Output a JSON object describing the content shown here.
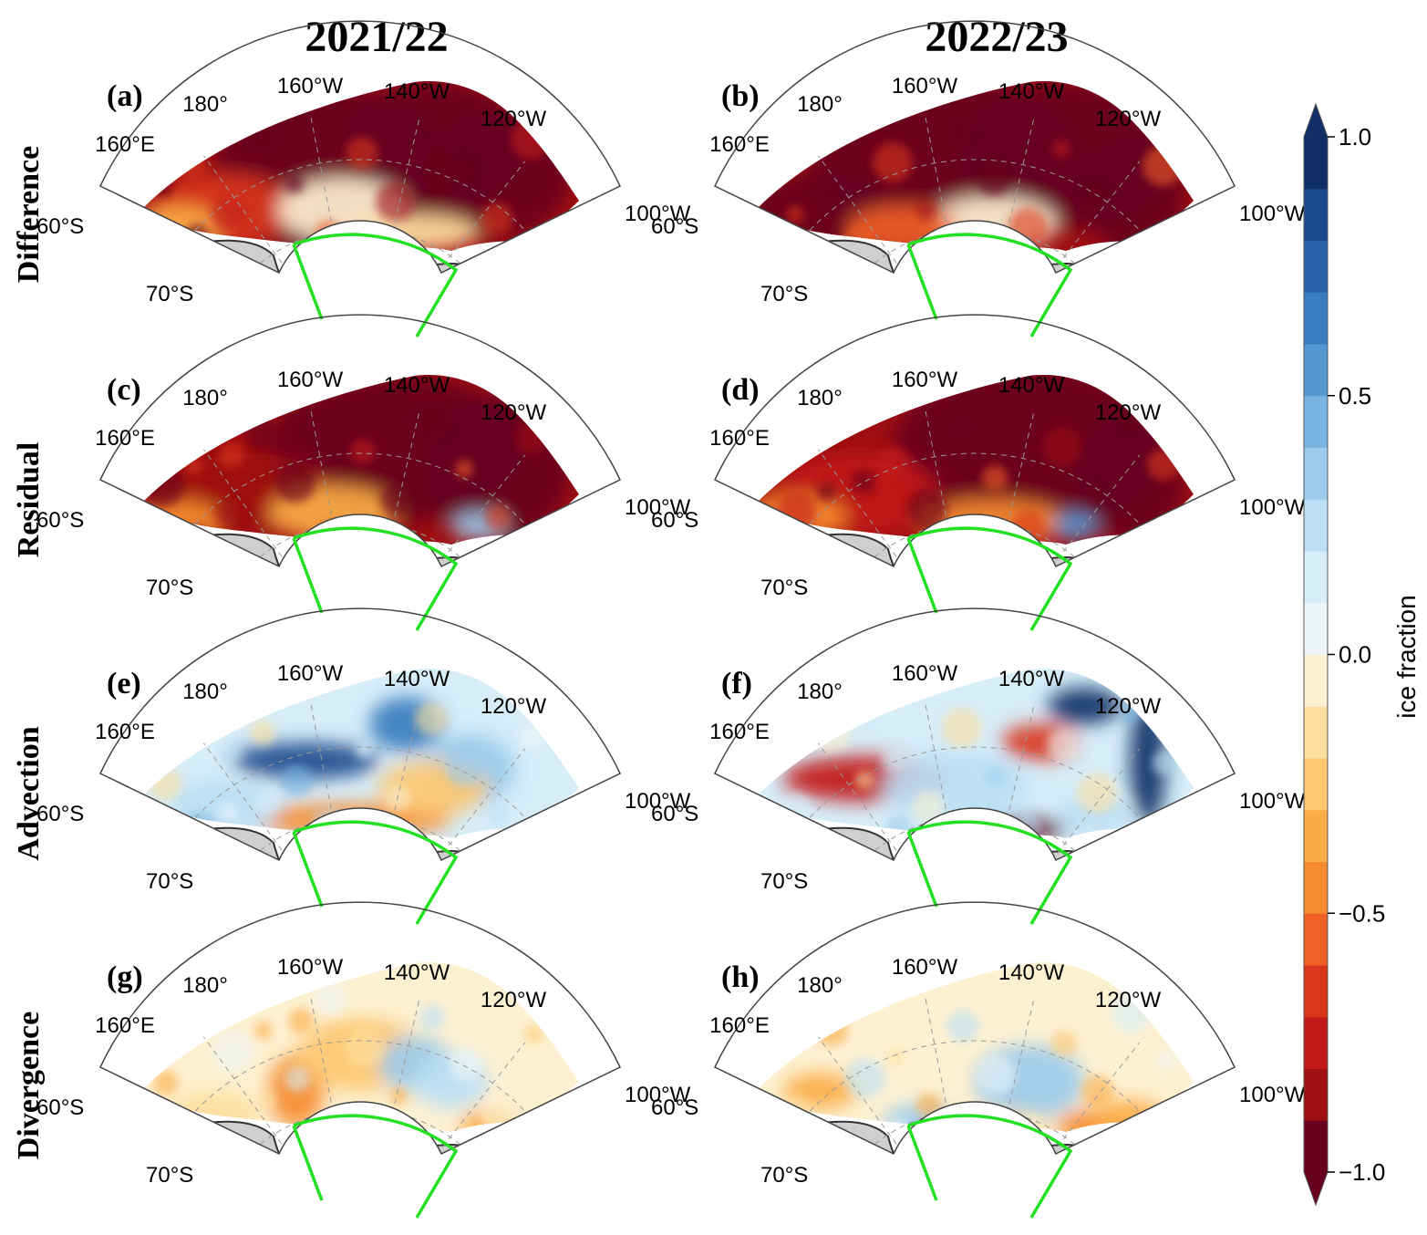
{
  "columns": [
    "2021/22",
    "2022/23"
  ],
  "rows": [
    "Difference",
    "Residual",
    "Advection",
    "Divergence"
  ],
  "panels": [
    {
      "label": "(a)",
      "row": 0,
      "col": 0,
      "type": "difference",
      "year": "2021/22"
    },
    {
      "label": "(b)",
      "row": 0,
      "col": 1,
      "type": "difference",
      "year": "2022/23"
    },
    {
      "label": "(c)",
      "row": 1,
      "col": 0,
      "type": "residual",
      "year": "2021/22"
    },
    {
      "label": "(d)",
      "row": 1,
      "col": 1,
      "type": "residual",
      "year": "2022/23"
    },
    {
      "label": "(e)",
      "row": 2,
      "col": 0,
      "type": "advection",
      "year": "2021/22"
    },
    {
      "label": "(f)",
      "row": 2,
      "col": 1,
      "type": "advection",
      "year": "2022/23"
    },
    {
      "label": "(g)",
      "row": 3,
      "col": 0,
      "type": "divergence",
      "year": "2021/22"
    },
    {
      "label": "(h)",
      "row": 3,
      "col": 1,
      "type": "divergence",
      "year": "2022/23"
    }
  ],
  "map_labels": {
    "lon": [
      "160°E",
      "180°",
      "160°W",
      "140°W",
      "120°W",
      "100°W"
    ],
    "lat": [
      "60°S",
      "70°S"
    ]
  },
  "colorbar": {
    "title": "ice fraction",
    "ticks": [
      "1.0",
      "0.5",
      "0.0",
      "−0.5",
      "−1.0"
    ],
    "tick_values": [
      1.0,
      0.5,
      0.0,
      -0.5,
      -1.0
    ],
    "range": [
      -1.0,
      1.0
    ],
    "levels": 20,
    "extend": "both",
    "colors": [
      "#67001f",
      "#9e0e12",
      "#c11a1a",
      "#d9371c",
      "#ee6026",
      "#f68c2f",
      "#fbac46",
      "#fdc871",
      "#fde0a0",
      "#fdf1d2",
      "#eef6f8",
      "#d7edf8",
      "#bcdff4",
      "#9ccbec",
      "#79b3e1",
      "#5698d1",
      "#3a7dbf",
      "#2a62a8",
      "#1d4a8c",
      "#112f66"
    ]
  },
  "colors": {
    "land": "#cfcfcf",
    "coast": "#333333",
    "box": "#22e022",
    "grid": "#9a9a9a"
  }
}
